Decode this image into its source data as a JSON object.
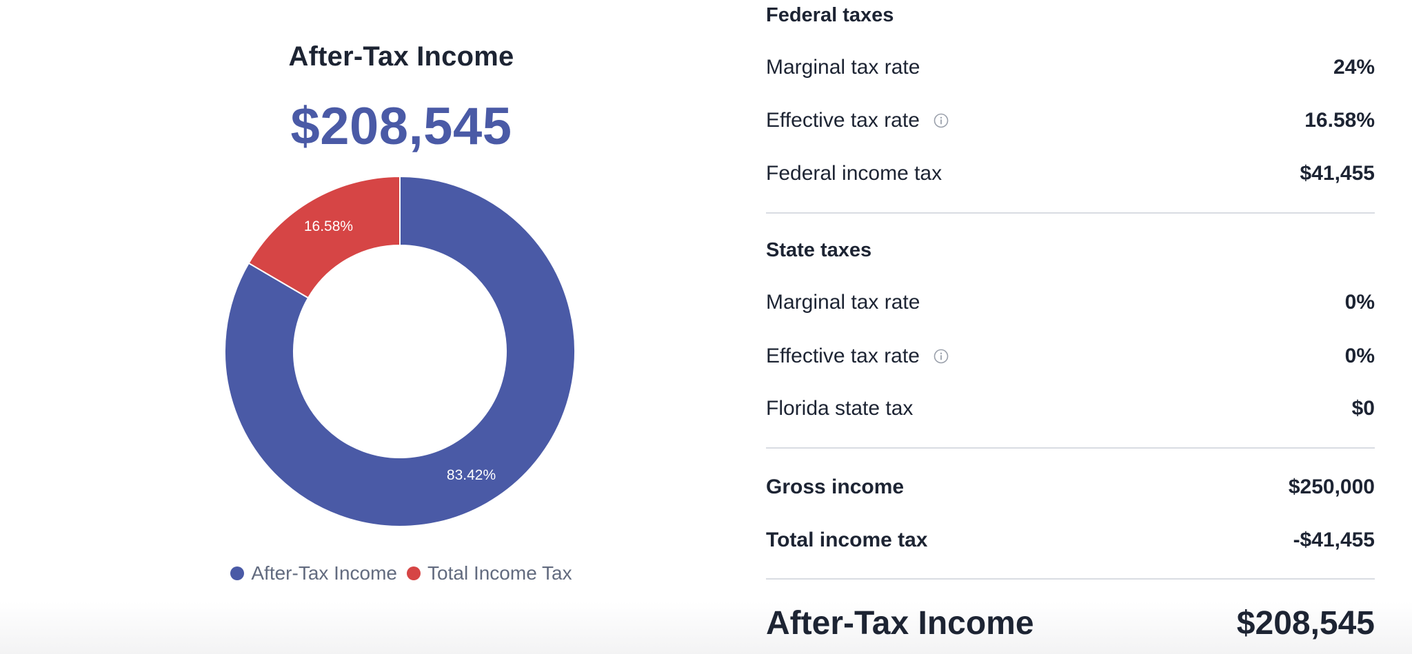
{
  "summary": {
    "title": "After-Tax Income",
    "amount": "$208,545"
  },
  "chart_data": {
    "type": "pie",
    "categories": [
      "After-Tax Income",
      "Total Income Tax"
    ],
    "values": [
      83.42,
      16.58
    ],
    "labels": [
      "83.42%",
      "16.58%"
    ],
    "colors": [
      "#4a5aa6",
      "#d64545"
    ],
    "legend": "bottom"
  },
  "legend": {
    "items": [
      {
        "label": "After-Tax Income",
        "color": "#4a5aa6"
      },
      {
        "label": "Total Income Tax",
        "color": "#d64545"
      }
    ]
  },
  "federal": {
    "title": "Federal taxes",
    "rows": [
      {
        "label": "Marginal tax rate",
        "value": "24%"
      },
      {
        "label": "Effective tax rate",
        "value": "16.58%"
      },
      {
        "label": "Federal income tax",
        "value": "$41,455"
      }
    ]
  },
  "state": {
    "title": "State taxes",
    "rows": [
      {
        "label": "Marginal tax rate",
        "value": "0%"
      },
      {
        "label": "Effective tax rate",
        "value": "0%"
      },
      {
        "label": "Florida state tax",
        "value": "$0"
      }
    ]
  },
  "totals": {
    "rows": [
      {
        "label": "Gross income",
        "value": "$250,000"
      },
      {
        "label": "Total income tax",
        "value": "-$41,455"
      }
    ],
    "final_label": "After-Tax Income",
    "final_value": "$208,545"
  },
  "colors": {
    "primary": "#4a5aa6",
    "tax": "#d64545",
    "text": "#1d2433",
    "muted": "#626b7f",
    "divider": "#d9dce2"
  },
  "icons": {
    "info": "info-circle-icon"
  }
}
